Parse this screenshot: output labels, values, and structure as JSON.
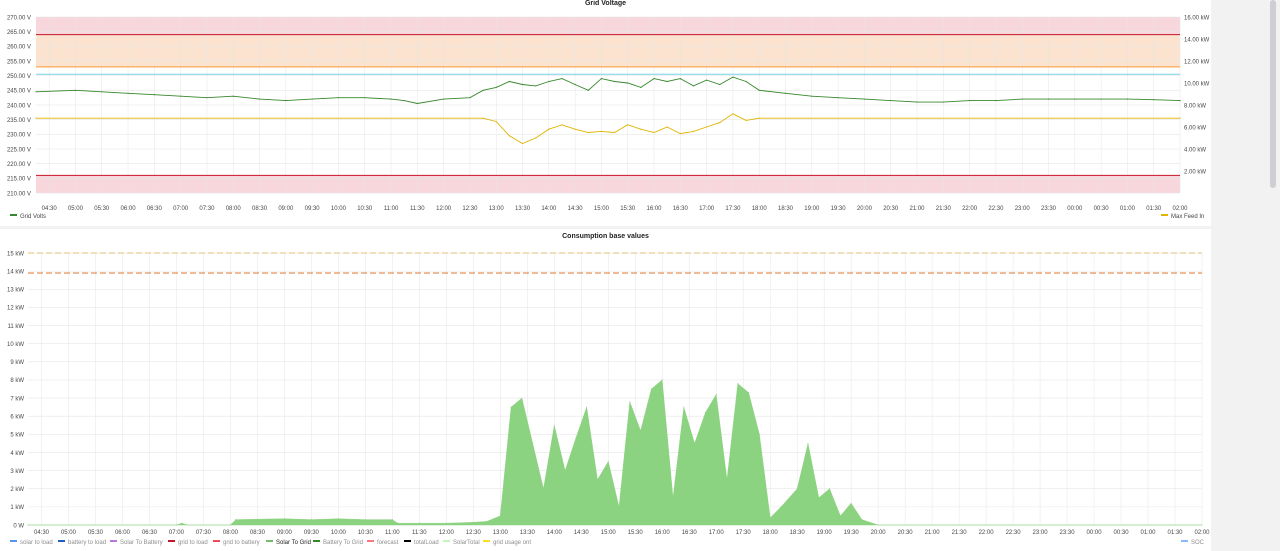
{
  "colors": {
    "page_bg": "#f2f2f3",
    "panel_bg": "#ffffff",
    "grid": "#e6e6e6",
    "axis_text": "#464646",
    "band_red": "#f7d6dc",
    "band_orange": "#fbe3cf",
    "line_red": "#c4162a",
    "line_orange": "#ff9830",
    "line_cyan": "#73d5e8",
    "grid_volts": "#37872d",
    "max_feed_in": "#e0b400",
    "solar_to_grid_fill": "#86d17a",
    "dash_yellow": "#e5c07b",
    "dash_orange": "#e0752d"
  },
  "panel_grid_voltage": {
    "title": "Grid Voltage"
  },
  "panel_consumption": {
    "title": "Consumption base values"
  },
  "chart_data": [
    {
      "type": "line",
      "title": "Grid Voltage",
      "x_ticks": [
        "04:30",
        "05:00",
        "05:30",
        "06:00",
        "06:30",
        "07:00",
        "07:30",
        "08:00",
        "08:30",
        "09:00",
        "09:30",
        "10:00",
        "10:30",
        "11:00",
        "11:30",
        "12:00",
        "12:30",
        "13:00",
        "13:30",
        "14:00",
        "14:30",
        "15:00",
        "15:30",
        "16:00",
        "16:30",
        "17:00",
        "17:30",
        "18:00",
        "18:30",
        "19:00",
        "19:30",
        "20:00",
        "20:30",
        "21:00",
        "21:30",
        "22:00",
        "22:30",
        "23:00",
        "23:30",
        "00:00",
        "00:30",
        "01:00",
        "01:30",
        "02:00"
      ],
      "y_left_ticks": [
        "270.00 V",
        "265.00 V",
        "260.00 V",
        "255.00 V",
        "250.00 V",
        "245.00 V",
        "240.00 V",
        "235.00 V",
        "230.00 V",
        "225.00 V",
        "220.00 V",
        "215.00 V",
        "210.00 V"
      ],
      "y_left_range": [
        210,
        270
      ],
      "y_right_ticks": [
        "16.00 kW",
        "14.00 kW",
        "12.00 kW",
        "10.00 kW",
        "8.00 kW",
        "6.00 kW",
        "4.00 kW",
        "2.00 kW"
      ],
      "y_right_range": [
        0,
        16
      ],
      "thresholds": [
        {
          "value": 264,
          "color": "#c4162a"
        },
        {
          "value": 253,
          "color": "#ff9830"
        },
        {
          "value": 250.5,
          "color": "#73d5e8"
        },
        {
          "value": 216,
          "color": "#c4162a"
        }
      ],
      "bands": [
        {
          "from": 264,
          "to": 270,
          "color": "#f7d6dc"
        },
        {
          "from": 253,
          "to": 264,
          "color": "#fbe3cf"
        },
        {
          "from": 210,
          "to": 216,
          "color": "#f7d6dc"
        }
      ],
      "series": [
        {
          "name": "Grid Volts",
          "axis": "left",
          "color": "#37872d",
          "x": [
            4.25,
            5.0,
            5.5,
            6.0,
            6.5,
            7.0,
            7.5,
            8.0,
            8.5,
            9.0,
            9.5,
            10.0,
            10.5,
            11.0,
            11.25,
            11.5,
            12.0,
            12.5,
            12.75,
            13.0,
            13.25,
            13.5,
            13.75,
            14.0,
            14.25,
            14.5,
            14.75,
            15.0,
            15.25,
            15.5,
            15.75,
            16.0,
            16.25,
            16.5,
            16.75,
            17.0,
            17.25,
            17.5,
            17.75,
            18.0,
            18.5,
            19.0,
            19.5,
            20.0,
            20.5,
            21.0,
            21.5,
            22.0,
            22.5,
            23.0,
            23.5,
            24.0,
            24.5,
            25.0,
            25.5,
            26.0
          ],
          "y": [
            244.5,
            245,
            244.5,
            244,
            243.5,
            243,
            242.5,
            243,
            242,
            241.5,
            242,
            242.5,
            242.5,
            242,
            241.5,
            240.5,
            242,
            242.5,
            245,
            246,
            248,
            247,
            246.5,
            248,
            249,
            247,
            245,
            249,
            248,
            247.5,
            246,
            249,
            248,
            249,
            246.5,
            248.5,
            247,
            249.5,
            248,
            245,
            244,
            243,
            242.5,
            242,
            241.5,
            241,
            241,
            241.5,
            241.5,
            242,
            242,
            242,
            242,
            242,
            241.8,
            241.5
          ]
        },
        {
          "name": "Max Feed In",
          "axis": "right",
          "color": "#e0b400",
          "x": [
            4.25,
            12.75,
            13.0,
            13.25,
            13.5,
            13.75,
            14.0,
            14.25,
            14.5,
            14.75,
            15.0,
            15.25,
            15.5,
            15.75,
            16.0,
            16.25,
            16.5,
            16.75,
            17.0,
            17.25,
            17.5,
            17.75,
            18.0,
            26.0
          ],
          "y": [
            6.8,
            6.8,
            6.5,
            5.2,
            4.5,
            5.0,
            5.8,
            6.2,
            5.8,
            5.5,
            5.6,
            5.5,
            6.2,
            5.8,
            5.5,
            6.0,
            5.4,
            5.6,
            6.0,
            6.4,
            7.2,
            6.6,
            6.8,
            6.8
          ]
        }
      ],
      "legend": [
        "Grid Volts",
        "Max Feed In"
      ]
    },
    {
      "type": "area",
      "title": "Consumption base values",
      "x_ticks": [
        "04:30",
        "05:00",
        "05:30",
        "06:00",
        "06:30",
        "07:00",
        "07:30",
        "08:00",
        "08:30",
        "09:00",
        "09:30",
        "10:00",
        "10:30",
        "11:00",
        "11:30",
        "12:00",
        "12:30",
        "13:00",
        "13:30",
        "14:00",
        "14:30",
        "15:00",
        "15:30",
        "16:00",
        "16:30",
        "17:00",
        "17:30",
        "18:00",
        "18:30",
        "19:00",
        "19:30",
        "20:00",
        "20:30",
        "21:00",
        "21:30",
        "22:00",
        "22:30",
        "23:00",
        "23:30",
        "00:00",
        "00:30",
        "01:00",
        "01:30",
        "02:00"
      ],
      "y_ticks": [
        "15 kW",
        "14 kW",
        "13 kW",
        "12 kW",
        "11 kW",
        "10 kW",
        "9 kW",
        "8 kW",
        "7 kW",
        "6 kW",
        "5 kW",
        "4 kW",
        "3 kW",
        "2 kW",
        "1 kW",
        "0 W"
      ],
      "y_range": [
        0,
        15
      ],
      "reference_lines": [
        {
          "value": 15.0,
          "color": "#e5c07b"
        },
        {
          "value": 13.9,
          "color": "#e0752d"
        }
      ],
      "series": [
        {
          "name": "Solar To Grid",
          "color": "#86d17a",
          "x": [
            4.25,
            7.0,
            7.1,
            7.2,
            8.0,
            8.1,
            9.0,
            9.5,
            10.0,
            10.5,
            11.0,
            11.1,
            11.5,
            12.0,
            12.5,
            12.75,
            13.0,
            13.2,
            13.4,
            13.6,
            13.8,
            14.0,
            14.2,
            14.4,
            14.6,
            14.8,
            15.0,
            15.2,
            15.4,
            15.6,
            15.8,
            16.0,
            16.2,
            16.4,
            16.6,
            16.8,
            17.0,
            17.2,
            17.4,
            17.6,
            17.8,
            18.0,
            18.2,
            18.5,
            18.7,
            18.9,
            19.1,
            19.3,
            19.5,
            19.7,
            20.0,
            26.0
          ],
          "y": [
            0,
            0,
            0.1,
            0,
            0,
            0.3,
            0.35,
            0.3,
            0.35,
            0.3,
            0.3,
            0.1,
            0.1,
            0.1,
            0.15,
            0.2,
            0.5,
            6.5,
            7.0,
            4.5,
            2.0,
            5.5,
            3.0,
            4.8,
            6.5,
            2.5,
            3.5,
            1.0,
            6.8,
            5.2,
            7.5,
            8.0,
            1.5,
            6.5,
            4.5,
            6.2,
            7.2,
            2.5,
            7.8,
            7.3,
            5.0,
            0.4,
            1.0,
            2.0,
            4.5,
            1.5,
            2.0,
            0.5,
            1.2,
            0.3,
            0,
            0
          ]
        }
      ],
      "legend": [
        "solar to load",
        "battery to load",
        "Solar To Battery",
        "grid to load",
        "grid to battery",
        "Solar To Grid",
        "Battery To Grid",
        "forecast",
        "totalLoad",
        "SolarTotal",
        "grid usage ont",
        "SOC"
      ],
      "legend_colors": [
        "#5794f2",
        "#1f60c4",
        "#b877d9",
        "#c4162a",
        "#f2495c",
        "#73bf69",
        "#37872d",
        "#ff7383",
        "#000000",
        "#c8f2c2",
        "#fade2a",
        "#8ab8ff"
      ]
    }
  ]
}
